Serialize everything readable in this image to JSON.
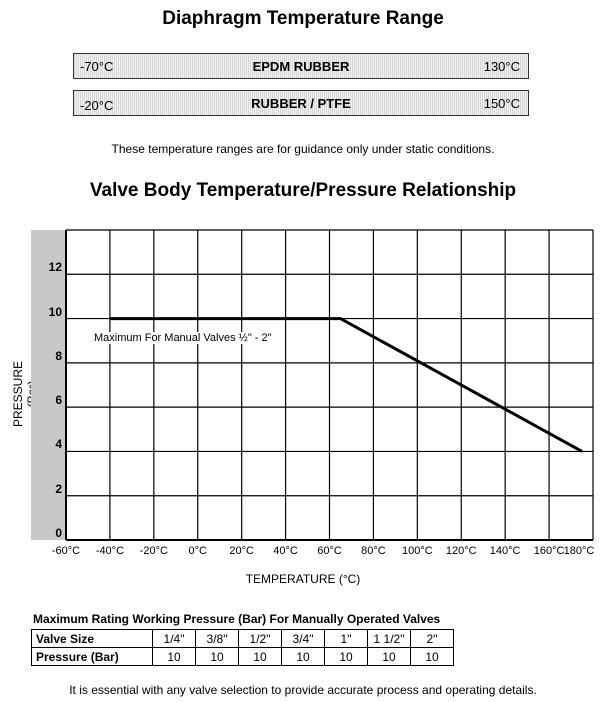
{
  "header": {
    "title": "Diaphragm Temperature Range"
  },
  "ranges": [
    {
      "min": "-70°C",
      "name": "EPDM RUBBER",
      "max": "130°C"
    },
    {
      "min": "-20°C",
      "name": "RUBBER / PTFE",
      "max": "150°C"
    }
  ],
  "guidance_note": "These temperature ranges are for guidance only under static conditions.",
  "chart_title": "Valve Body Temperature/Pressure Relationship",
  "chart_data": {
    "type": "line",
    "title": "Valve Body Temperature/Pressure Relationship",
    "xlabel": "TEMPERATURE (°C)",
    "ylabel": "PRESSURE (Bar)",
    "x_ticks": [
      "-60°C",
      "-40°C",
      "-20°C",
      "0°C",
      "20°C",
      "40°C",
      "60°C",
      "80°C",
      "100°C",
      "120°C",
      "140°C",
      "160°C",
      "180°C"
    ],
    "y_ticks": [
      "0",
      "2",
      "4",
      "6",
      "8",
      "10",
      "12"
    ],
    "xlim": [
      -60,
      180
    ],
    "ylim": [
      0,
      14
    ],
    "grid": true,
    "series": [
      {
        "x": [
          -40,
          65,
          175
        ],
        "y": [
          10,
          10,
          4
        ]
      }
    ],
    "annotations": [
      {
        "text": "Maximum For Manual Valves ½\" -  2\"",
        "x": -40,
        "y": 9.1
      }
    ]
  },
  "table": {
    "caption": "Maximum Rating Working Pressure (Bar) For Manually Operated Valves",
    "rows": [
      {
        "label": "Valve Size",
        "values": [
          "1/4\"",
          "3/8\"",
          "1/2\"",
          "3/4\"",
          "1\"",
          "1 1/2\"",
          "2\""
        ]
      },
      {
        "label": "Pressure (Bar)",
        "values": [
          "10",
          "10",
          "10",
          "10",
          "10",
          "10",
          "10"
        ]
      }
    ]
  },
  "footer_note": "It is essential with any valve selection to provide accurate process and operating details."
}
